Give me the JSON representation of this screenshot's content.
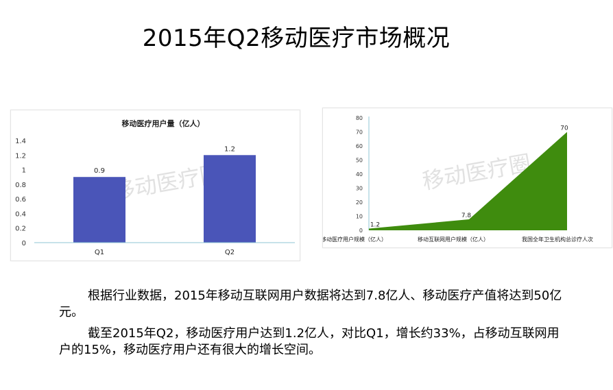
{
  "slide": {
    "title": "2015年Q2移动医疗市场概况",
    "paragraphs": [
      "根据行业数据，2015年移动互联网用户数据将达到7.8亿人、移动医疗产值将达到50亿元。",
      "截至2015年Q2，移动医疗用户达到1.2亿人，对比Q1，增长约33%，占移动互联网用户的15%，移动医疗用户还有很大的增长空间。"
    ]
  },
  "chart_data": [
    {
      "type": "bar",
      "title": "移动医疗用户量（亿人）",
      "categories": [
        "Q1",
        "Q2"
      ],
      "values": [
        0.9,
        1.2
      ],
      "ylim": [
        0,
        1.4
      ],
      "yticks": [
        "1.4",
        "1.2",
        "1",
        "0.8",
        "0.6",
        "0.4",
        "0.2",
        "0"
      ],
      "color": "#4a55b8",
      "watermark": "移动医疗圈",
      "grid": false
    },
    {
      "type": "area",
      "categories": [
        "移动医疗用户规模（亿人）",
        "移动互联网用户规模（亿人）",
        "我国全年卫生机构总诊疗人次"
      ],
      "values": [
        1.2,
        7.8,
        70
      ],
      "ylim": [
        0,
        80
      ],
      "yticks": [
        "80",
        "70",
        "60",
        "50",
        "40",
        "30",
        "20",
        "10",
        "0"
      ],
      "color": "#3f8c0e",
      "watermark": "移动医疗圈",
      "grid": false
    }
  ]
}
